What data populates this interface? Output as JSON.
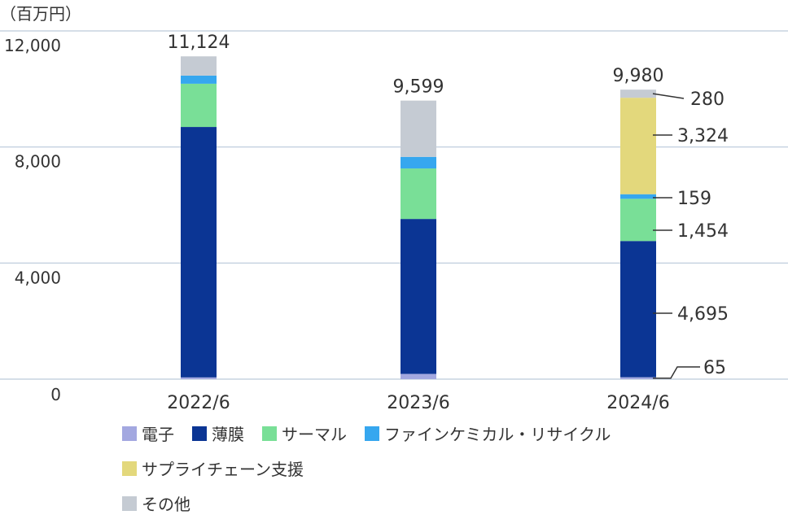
{
  "chart_data": {
    "type": "bar",
    "stacked": true,
    "unit_label": "（百万円）",
    "categories": [
      "2022/6",
      "2023/6",
      "2024/6"
    ],
    "ylim": [
      0,
      12500
    ],
    "yticks": [
      0,
      4000,
      8000,
      12000
    ],
    "ytick_labels": [
      "0",
      "4,000",
      "8,000",
      "12,000"
    ],
    "totals": [
      11124,
      9599,
      9980
    ],
    "total_labels": [
      "11,124",
      "9,599",
      "9,980"
    ],
    "grid": true,
    "legend_position": "bottom",
    "series": [
      {
        "name": "電子",
        "color": "#a3a8e0",
        "values": [
          60,
          180,
          65
        ]
      },
      {
        "name": "薄膜",
        "color": "#0b3594",
        "values": [
          8630,
          5340,
          4695
        ]
      },
      {
        "name": "サーマル",
        "color": "#79df97",
        "values": [
          1490,
          1740,
          1454
        ]
      },
      {
        "name": "ファインケミカル・リサイクル",
        "color": "#36a7ef",
        "values": [
          280,
          400,
          159
        ]
      },
      {
        "name": "サプライチェーン支援",
        "color": "#e3d87c",
        "values": [
          0,
          0,
          3324
        ]
      },
      {
        "name": "その他",
        "color": "#c5cbd3",
        "values": [
          664,
          1939,
          280
        ]
      }
    ],
    "annotations": {
      "category_index": 2,
      "items": [
        {
          "series_index": 0,
          "label": "65"
        },
        {
          "series_index": 1,
          "label": "4,695"
        },
        {
          "series_index": 2,
          "label": "1,454"
        },
        {
          "series_index": 3,
          "label": "159"
        },
        {
          "series_index": 4,
          "label": "3,324"
        },
        {
          "series_index": 5,
          "label": "280"
        }
      ]
    }
  }
}
